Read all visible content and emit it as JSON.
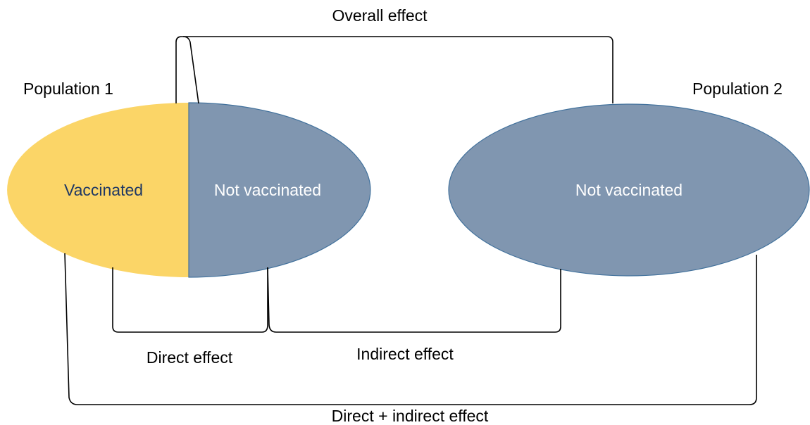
{
  "populations": [
    {
      "label": "Population 1",
      "groups": [
        "Vaccinated",
        "Not vaccinated"
      ]
    },
    {
      "label": "Population 2",
      "groups": [
        "Not vaccinated"
      ]
    }
  ],
  "effects": {
    "overall": "Overall effect",
    "direct": "Direct effect",
    "indirect": "Indirect effect",
    "combined": "Direct + indirect effect"
  }
}
